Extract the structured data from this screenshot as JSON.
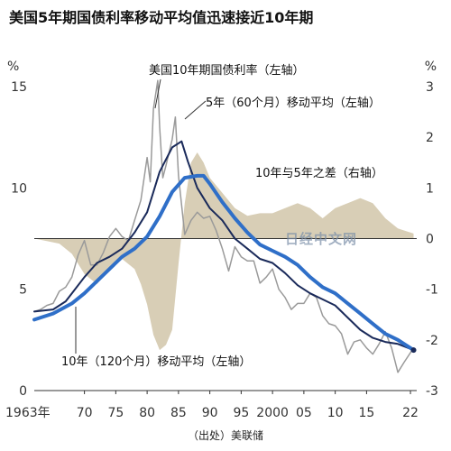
{
  "title": "美国5年期国债利率移动平均值迅速接近10年期",
  "source_note": "（出处）美联储",
  "watermark": "日经中文网",
  "chart_data": {
    "type": "line",
    "left_axis": {
      "unit": "%",
      "ylim": [
        0,
        15
      ],
      "ticks": [
        0,
        5,
        10,
        15
      ],
      "tick_labels": [
        "0",
        "5",
        "10",
        "15"
      ]
    },
    "right_axis": {
      "unit": "%",
      "ylim": [
        -3,
        3
      ],
      "ticks": [
        -3,
        -2,
        -1,
        0,
        1,
        2,
        3
      ],
      "tick_labels": [
        "-3",
        "-2",
        "-1",
        "0",
        "1",
        "2",
        "3"
      ]
    },
    "x_axis": {
      "xlim": [
        1962,
        2023
      ],
      "ticks": [
        1963,
        1970,
        1975,
        1980,
        1985,
        1990,
        1995,
        2000,
        2005,
        2010,
        2015,
        2022
      ],
      "tick_labels": [
        "1963年",
        "70",
        "75",
        "80",
        "85",
        "90",
        "95",
        "2000",
        "05",
        "10",
        "15",
        "22"
      ]
    },
    "zero_line_right": 0,
    "series": [
      {
        "name": "美国10年期国债利率（左轴）",
        "axis": "left",
        "color": "#9a9a9a",
        "x": [
          1962,
          1963,
          1964,
          1965,
          1966,
          1967,
          1968,
          1969,
          1970,
          1971,
          1972,
          1973,
          1974,
          1975,
          1976,
          1977,
          1978,
          1979,
          1980,
          1980.5,
          1981,
          1981.7,
          1982,
          1982.5,
          1983,
          1984,
          1984.5,
          1985,
          1986,
          1987,
          1988,
          1989,
          1990,
          1991,
          1992,
          1993,
          1994,
          1995,
          1996,
          1997,
          1998,
          1999,
          2000,
          2001,
          2002,
          2003,
          2004,
          2005,
          2006,
          2007,
          2008,
          2009,
          2010,
          2011,
          2012,
          2013,
          2014,
          2015,
          2016,
          2017,
          2018,
          2019,
          2020,
          2021,
          2022.5
        ],
        "y": [
          3.9,
          4.0,
          4.2,
          4.3,
          4.9,
          5.1,
          5.6,
          6.7,
          7.4,
          6.2,
          6.2,
          6.8,
          7.6,
          8.0,
          7.6,
          7.4,
          8.4,
          9.4,
          11.5,
          10.3,
          13.9,
          15.3,
          13.0,
          10.5,
          11.1,
          12.4,
          13.5,
          10.6,
          7.7,
          8.4,
          8.8,
          8.5,
          8.6,
          7.9,
          7.0,
          5.9,
          7.1,
          6.6,
          6.4,
          6.4,
          5.3,
          5.6,
          6.0,
          5.0,
          4.6,
          4.0,
          4.3,
          4.3,
          4.8,
          4.6,
          3.7,
          3.3,
          3.2,
          2.8,
          1.8,
          2.4,
          2.5,
          2.1,
          1.8,
          2.3,
          2.9,
          2.1,
          0.9,
          1.4,
          2.1
        ]
      },
      {
        "name": "5年（60个月）移动平均（左轴）",
        "axis": "left",
        "color": "#1a2a5a",
        "x": [
          1962,
          1965,
          1967,
          1968,
          1970,
          1972,
          1974,
          1976,
          1978,
          1980,
          1982,
          1984,
          1985.5,
          1986.5,
          1988,
          1990,
          1992,
          1994,
          1996,
          1998,
          2000,
          2002,
          2004,
          2006,
          2008,
          2010,
          2012,
          2014,
          2016,
          2018,
          2020,
          2022.5
        ],
        "y": [
          3.9,
          4.0,
          4.4,
          4.8,
          5.6,
          6.3,
          6.6,
          7.0,
          7.8,
          8.8,
          10.8,
          12.0,
          12.3,
          11.3,
          10.0,
          9.0,
          8.4,
          7.5,
          7.0,
          6.5,
          6.3,
          5.8,
          5.2,
          4.8,
          4.5,
          4.2,
          3.6,
          3.0,
          2.6,
          2.4,
          2.3,
          2.0
        ]
      },
      {
        "name": "10年（120个月）移动平均（左轴）",
        "axis": "left",
        "color": "#2f6fc8",
        "x": [
          1962,
          1965,
          1968,
          1970,
          1972,
          1974,
          1976,
          1978,
          1980,
          1982,
          1984,
          1986,
          1988,
          1989,
          1990,
          1992,
          1994,
          1996,
          1998,
          2000,
          2002,
          2004,
          2006,
          2008,
          2010,
          2012,
          2014,
          2016,
          2018,
          2020,
          2022.5
        ],
        "y": [
          3.5,
          3.8,
          4.3,
          4.8,
          5.4,
          6.0,
          6.6,
          7.0,
          7.6,
          8.6,
          9.8,
          10.5,
          10.6,
          10.6,
          10.2,
          9.3,
          8.5,
          7.8,
          7.2,
          6.9,
          6.6,
          6.2,
          5.6,
          5.1,
          4.8,
          4.3,
          3.8,
          3.3,
          2.8,
          2.5,
          2.0
        ]
      },
      {
        "name": "10年与5年之差（右轴）",
        "axis": "right",
        "type": "area",
        "color": "#d8ceb6",
        "x": [
          1962,
          1964,
          1966,
          1968,
          1970,
          1972,
          1974,
          1976,
          1978,
          1979,
          1980,
          1981,
          1982,
          1983,
          1984,
          1985,
          1986,
          1987,
          1988,
          1989,
          1990,
          1992,
          1994,
          1996,
          1998,
          2000,
          2002,
          2004,
          2006,
          2008,
          2010,
          2012,
          2014,
          2016,
          2018,
          2020,
          2022.5
        ],
        "y": [
          0,
          -0.05,
          -0.1,
          -0.3,
          -0.7,
          -0.9,
          -0.6,
          -0.4,
          -0.6,
          -0.9,
          -1.3,
          -1.9,
          -2.2,
          -2.1,
          -1.8,
          -0.5,
          0.7,
          1.5,
          1.7,
          1.5,
          1.2,
          0.9,
          0.6,
          0.45,
          0.5,
          0.5,
          0.6,
          0.7,
          0.6,
          0.4,
          0.6,
          0.7,
          0.8,
          0.7,
          0.4,
          0.2,
          0.1
        ]
      }
    ],
    "annotations": [
      {
        "text": "美国10年期国债利率（左轴）"
      },
      {
        "text": "5年（60个月）移动平均（左轴）"
      },
      {
        "text": "10年与5年之差（右轴）"
      },
      {
        "text": "10年（120个月）移动平均（左轴）"
      }
    ]
  }
}
